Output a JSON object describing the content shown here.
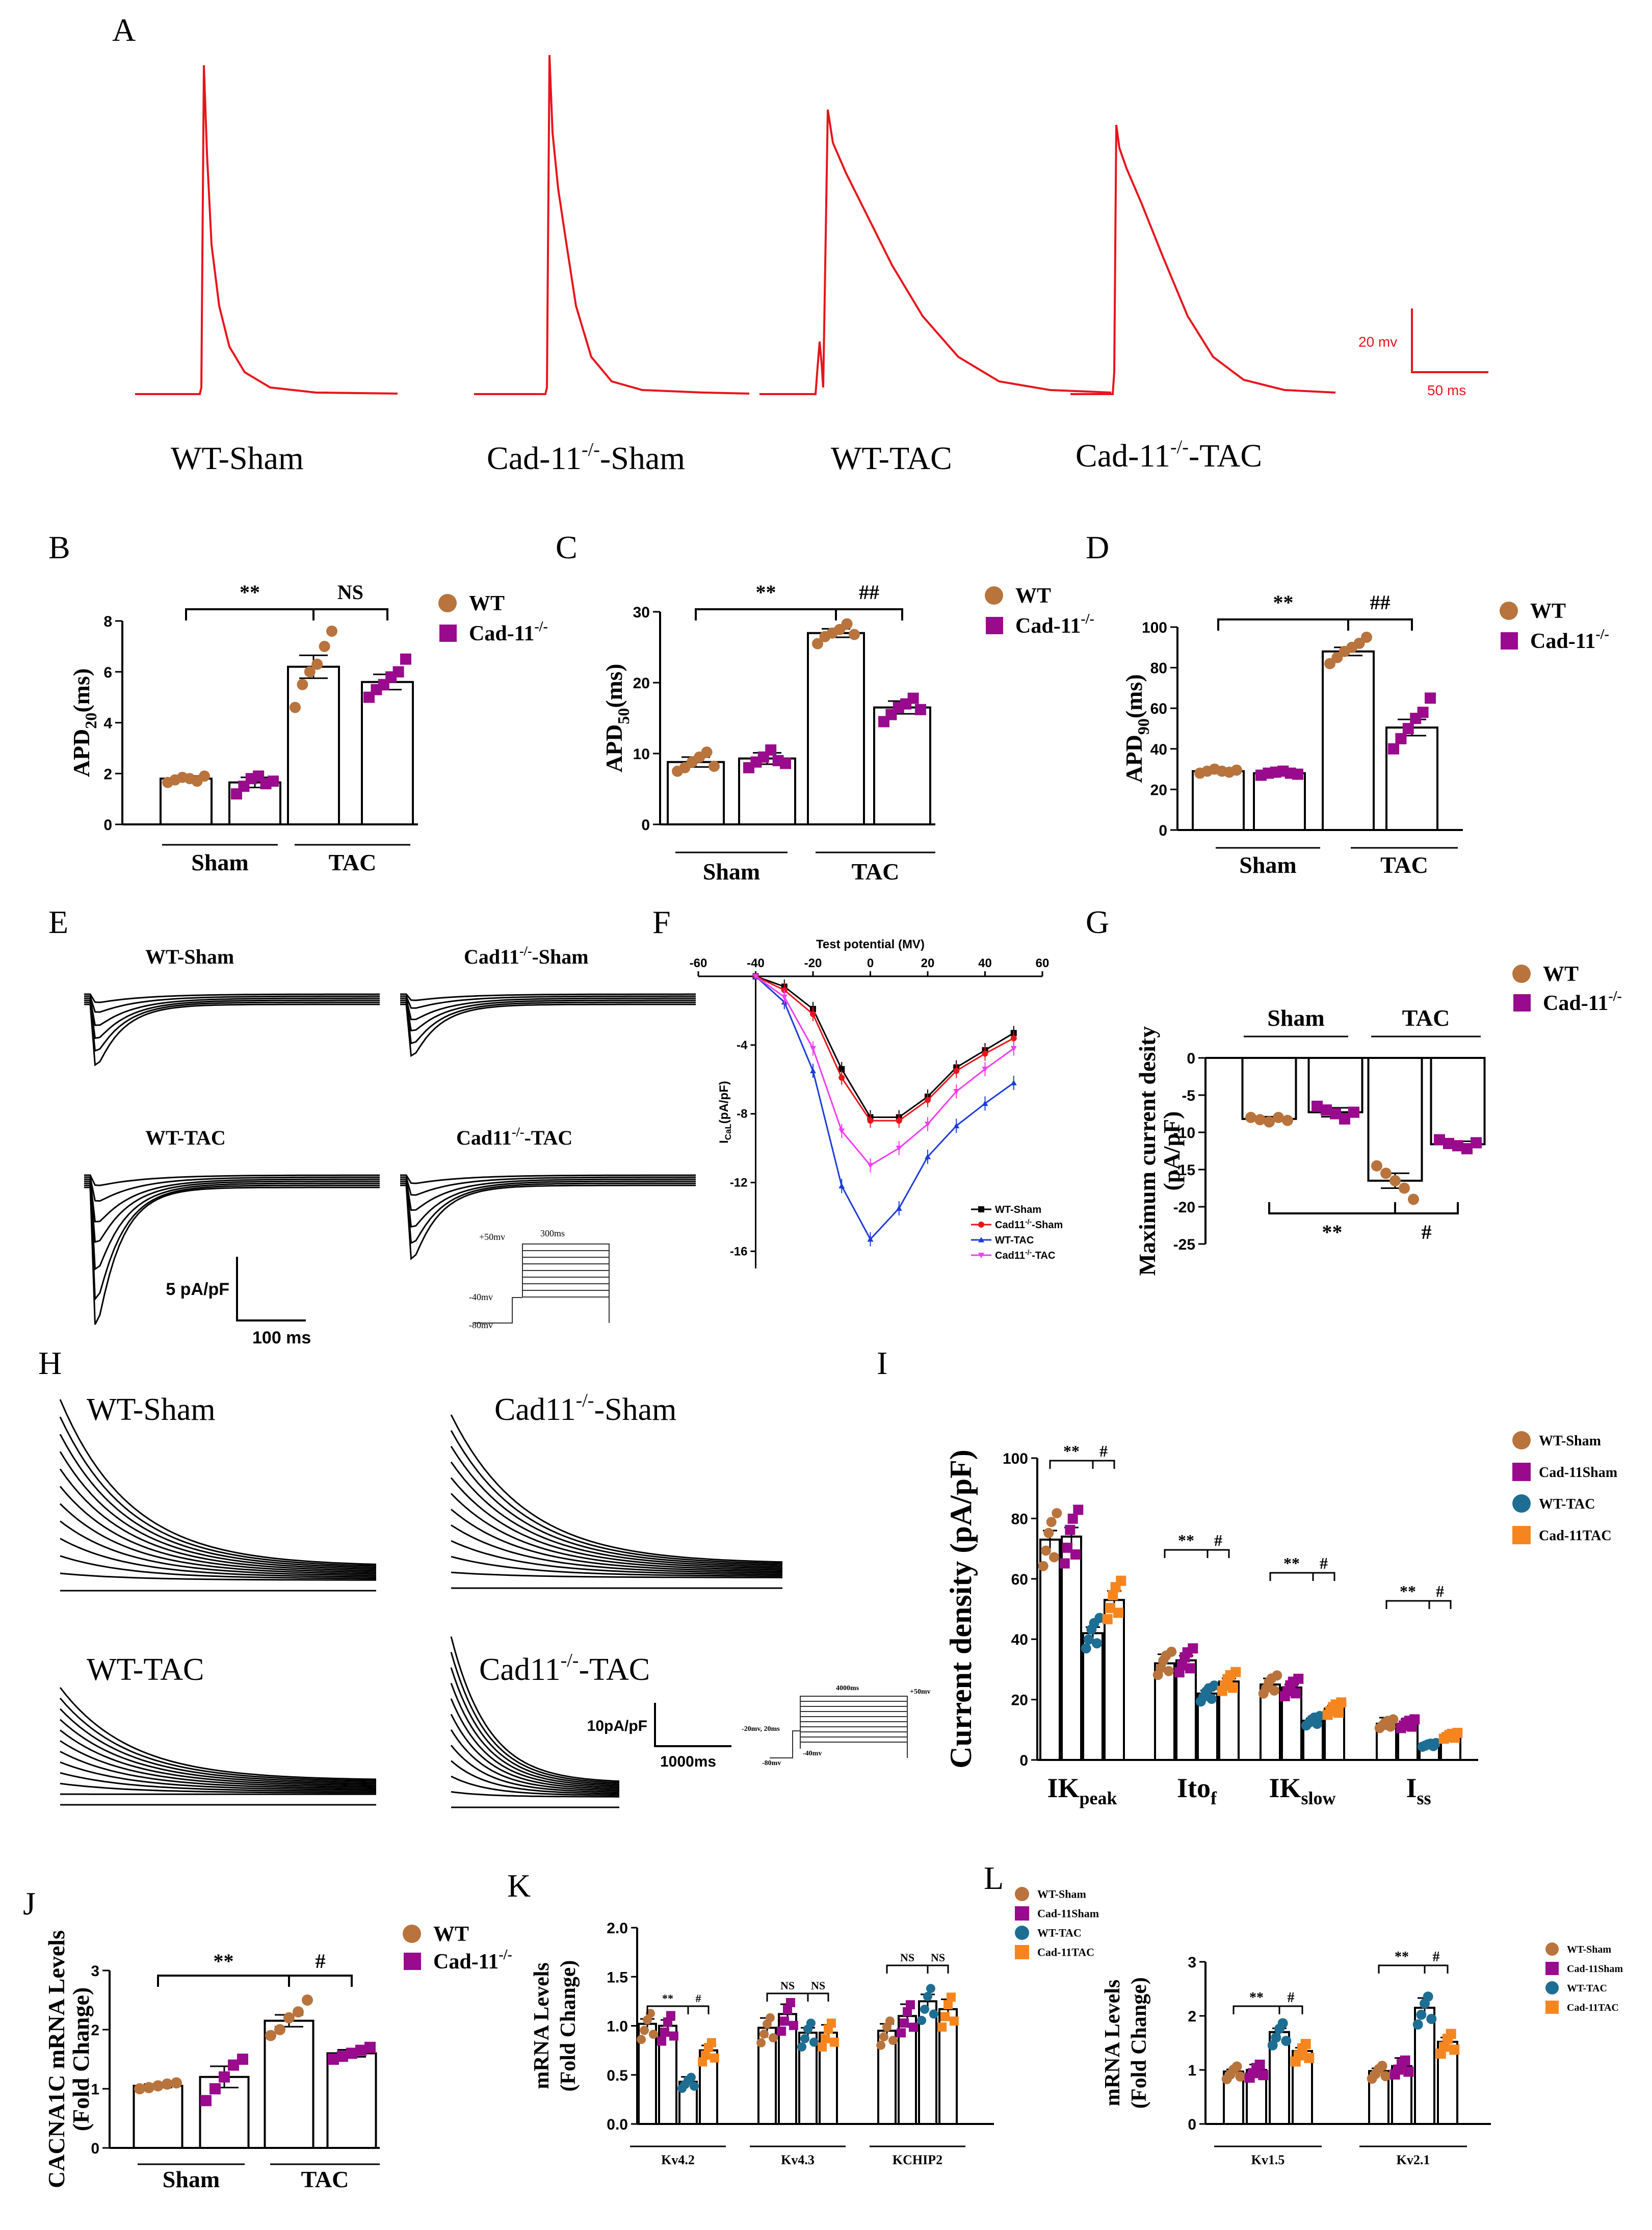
{
  "panel_letters": {
    "A": "A",
    "B": "B",
    "C": "C",
    "D": "D",
    "E": "E",
    "F": "F",
    "G": "G",
    "H": "H",
    "I": "I",
    "J": "J",
    "K": "K",
    "L": "L"
  },
  "panelA": {
    "labels": [
      "WT-Sham",
      "Cad-11",
      "-Sham",
      "WT-TAC",
      "Cad-11",
      "-TAC"
    ],
    "sup": "-/-",
    "scale_v": "20 mv",
    "scale_t": "50 ms",
    "trace_color": "#e8141c"
  },
  "legend_wt": "WT",
  "legend_cad": "Cad-11",
  "legend_sup": "-/-",
  "colors": {
    "wt": "#b8743c",
    "cad": "#990a8c",
    "wt_tac": "#1d6e92",
    "cad_tac": "#f5861f"
  },
  "panelE": {
    "labels": [
      "WT-Sham",
      "Cad11",
      "-Sham",
      "WT-TAC",
      "Cad11",
      "-TAC"
    ],
    "sup": "-/-",
    "scale_i": "5 pA/pF",
    "scale_t": "100 ms",
    "protocol": [
      "+50mv",
      "300ms",
      "-40mv",
      "-80mv"
    ]
  },
  "panelH": {
    "labels": [
      "WT-Sham",
      "Cad11",
      "-Sham",
      "WT-TAC",
      "Cad11",
      "-TAC"
    ],
    "sup": "-/-",
    "scale_i": "10pA/pF",
    "scale_t": "1000ms",
    "protocol": [
      "4000ms",
      "+50mv",
      "-20mv, 20ms",
      "-80mv",
      "-40mv"
    ]
  },
  "chart_data": [
    {
      "id": "B",
      "type": "bar",
      "title": "",
      "ylabel": "APD20(ms)",
      "ylabel_main": "APD",
      "ylabel_sub": "20",
      "ylabel_unit": "(ms)",
      "ylim": [
        0,
        8
      ],
      "yticks": [
        "0",
        "2",
        "4",
        "6",
        "8"
      ],
      "groups": [
        "Sham",
        "TAC"
      ],
      "series": [
        {
          "name": "WT"
        },
        {
          "name": "Cad-11-/-"
        }
      ],
      "values": [
        1.8,
        1.65,
        6.2,
        5.6
      ],
      "errors": [
        0.1,
        0.2,
        0.45,
        0.3
      ],
      "points": [
        [
          1.65,
          1.75,
          1.85,
          1.8,
          1.7,
          1.9
        ],
        [
          1.2,
          1.5,
          1.8,
          1.9,
          1.6,
          1.7
        ],
        [
          4.6,
          5.5,
          6.0,
          6.3,
          7.0,
          7.6
        ],
        [
          5.0,
          5.3,
          5.5,
          5.8,
          6.0,
          6.5
        ]
      ],
      "significance": [
        {
          "text": "**",
          "from": 0,
          "to": 2
        },
        {
          "text": "NS",
          "from": 2,
          "to": 3
        }
      ]
    },
    {
      "id": "C",
      "type": "bar",
      "title": "",
      "ylabel": "APD50(ms)",
      "ylabel_main": "APD",
      "ylabel_sub": "50",
      "ylabel_unit": "(ms)",
      "ylim": [
        0,
        30
      ],
      "yticks": [
        "0",
        "10",
        "20",
        "30"
      ],
      "groups": [
        "Sham",
        "TAC"
      ],
      "series": [
        {
          "name": "WT"
        },
        {
          "name": "Cad-11-/-"
        }
      ],
      "values": [
        8.8,
        9.3,
        27.0,
        16.5
      ],
      "errors": [
        0.7,
        0.8,
        0.6,
        0.9
      ],
      "points": [
        [
          7.5,
          8.0,
          8.8,
          9.5,
          10.2,
          8.2
        ],
        [
          8.0,
          8.8,
          9.5,
          10.5,
          9.0,
          8.6
        ],
        [
          25.5,
          26.5,
          27.0,
          27.5,
          28.3,
          26.8
        ],
        [
          14.5,
          15.5,
          16.5,
          17.0,
          17.8,
          16.2
        ]
      ],
      "significance": [
        {
          "text": "**",
          "from": 0,
          "to": 2
        },
        {
          "text": "##",
          "from": 2,
          "to": 3
        }
      ]
    },
    {
      "id": "D",
      "type": "bar",
      "title": "",
      "ylabel": "APD90(ms)",
      "ylabel_main": "APD",
      "ylabel_sub": "90",
      "ylabel_unit": "(ms)",
      "ylim": [
        0,
        100
      ],
      "yticks": [
        "0",
        "20",
        "40",
        "60",
        "80",
        "100"
      ],
      "groups": [
        "Sham",
        "TAC"
      ],
      "series": [
        {
          "name": "WT"
        },
        {
          "name": "Cad-11-/-"
        }
      ],
      "values": [
        29.0,
        28.0,
        88.0,
        50.5
      ],
      "errors": [
        0.8,
        0.8,
        2.0,
        4.0
      ],
      "points": [
        [
          28,
          29,
          30,
          29,
          28.5,
          29.5
        ],
        [
          27,
          28,
          28.5,
          29,
          28,
          27.5
        ],
        [
          82,
          85,
          88,
          90,
          92,
          95
        ],
        [
          40,
          45,
          50,
          55,
          58,
          65
        ]
      ],
      "significance": [
        {
          "text": "**",
          "from": 0,
          "to": 2
        },
        {
          "text": "##",
          "from": 2,
          "to": 3
        }
      ]
    },
    {
      "id": "F",
      "type": "line",
      "title": "Test potential (MV)",
      "xlabel": "Test potential (MV)",
      "ylabel": "ICaL(pA/pF)",
      "ylabel_main": "I",
      "ylabel_sub": "CaL",
      "ylabel_unit": "(pA/pF)",
      "xlim": [
        -60,
        60
      ],
      "ylim": [
        -17,
        0
      ],
      "xticks": [
        "-60",
        "-40",
        "-20",
        "0",
        "20",
        "40",
        "60"
      ],
      "yticks": [
        "-4",
        "-8",
        "-12",
        "-16"
      ],
      "x": [
        -40,
        -30,
        -20,
        -10,
        0,
        10,
        20,
        30,
        40,
        50
      ],
      "series": [
        {
          "name": "WT-Sham",
          "color": "#000000",
          "values": [
            0,
            -0.6,
            -1.9,
            -5.4,
            -8.2,
            -8.2,
            -7.0,
            -5.3,
            -4.3,
            -3.3
          ]
        },
        {
          "name": "Cad11-/--Sham",
          "label": "Cad11",
          "sup": "-/-",
          "tail": "-Sham",
          "color": "#e8141c",
          "values": [
            0,
            -0.8,
            -2.2,
            -5.9,
            -8.4,
            -8.4,
            -7.2,
            -5.5,
            -4.5,
            -3.6
          ]
        },
        {
          "name": "WT-TAC",
          "color": "#1c3bdc",
          "values": [
            0,
            -1.5,
            -5.5,
            -12.2,
            -15.3,
            -13.5,
            -10.5,
            -8.7,
            -7.4,
            -6.2
          ]
        },
        {
          "name": "Cad11-/--TAC",
          "label": "Cad11",
          "sup": "-/-",
          "tail": "-TAC",
          "color": "#f23cf2",
          "values": [
            0,
            -1.2,
            -4.2,
            -9.0,
            -11.0,
            -10.0,
            -8.6,
            -6.7,
            -5.4,
            -4.2
          ]
        }
      ]
    },
    {
      "id": "G",
      "type": "bar",
      "title": "",
      "ylabel": "Maximum current desity (pA/pF)",
      "ylabel_line1": "Maximum current desity",
      "ylabel_line2": "(pA/pF)",
      "ylim": [
        -25,
        0
      ],
      "yticks": [
        "0",
        "-5",
        "-10",
        "-15",
        "-20",
        "-25"
      ],
      "groups": [
        "Sham",
        "TAC"
      ],
      "series": [
        {
          "name": "WT"
        },
        {
          "name": "Cad-11-/-"
        }
      ],
      "values": [
        -8.2,
        -7.3,
        -16.5,
        -11.6
      ],
      "errors": [
        0.3,
        0.6,
        1.0,
        0.4
      ],
      "points": [
        [
          -8.0,
          -8.3,
          -8.6,
          -8.0,
          -8.4
        ],
        [
          -6.5,
          -7.0,
          -7.5,
          -8.2,
          -7.3
        ],
        [
          -14.5,
          -15.5,
          -16.5,
          -17.5,
          -19.0
        ],
        [
          -11.0,
          -11.5,
          -11.8,
          -12.2,
          -11.4
        ]
      ],
      "significance": [
        {
          "text": "**",
          "from": 0,
          "to": 2
        },
        {
          "text": "#",
          "from": 2,
          "to": 3
        }
      ]
    },
    {
      "id": "I",
      "type": "bar",
      "title": "",
      "ylabel": "Current density (pA/pF)",
      "ylim": [
        0,
        100
      ],
      "yticks": [
        "0",
        "20",
        "40",
        "60",
        "80",
        "100"
      ],
      "categories": [
        "IKpeak",
        "Itof",
        "IKslow",
        "Iss"
      ],
      "category_main": [
        "IK",
        "Ito",
        "IK",
        "I"
      ],
      "category_sub": [
        "peak",
        "f",
        "slow",
        "ss"
      ],
      "series": [
        {
          "name": "WT-Sham",
          "values": [
            73,
            32,
            25,
            12
          ]
        },
        {
          "name": "Cad-11Sham",
          "values": [
            74,
            33,
            24,
            12
          ]
        },
        {
          "name": "WT-TAC",
          "values": [
            42,
            22,
            13,
            5
          ]
        },
        {
          "name": "Cad-11TAC",
          "values": [
            53,
            26,
            17,
            8
          ]
        }
      ],
      "errors": [
        [
          3,
          3,
          2,
          2
        ],
        [
          3,
          1.5,
          1,
          1.5
        ],
        [
          2,
          1,
          0.8,
          0.7
        ],
        [
          3,
          1,
          1,
          1
        ]
      ],
      "significance": [
        {
          "text": "**",
          "pair": [
            0,
            2
          ]
        },
        {
          "text": "#",
          "pair": [
            2,
            3
          ]
        }
      ]
    },
    {
      "id": "J",
      "type": "bar",
      "title": "",
      "ylabel": "CACNA1C mRNA Levels (Fold Change)",
      "ylabel_line1": "CACNA1C mRNA Levels",
      "ylabel_line2": "(Fold Change)",
      "ylim": [
        0,
        3
      ],
      "yticks": [
        "0",
        "1",
        "2",
        "3"
      ],
      "groups": [
        "Sham",
        "TAC"
      ],
      "series": [
        {
          "name": "WT"
        },
        {
          "name": "Cad-11-/-"
        }
      ],
      "values": [
        1.05,
        1.2,
        2.15,
        1.6
      ],
      "errors": [
        0.03,
        0.18,
        0.1,
        0.06
      ],
      "points": [
        [
          1.0,
          1.02,
          1.05,
          1.08,
          1.1
        ],
        [
          0.8,
          1.0,
          1.2,
          1.4,
          1.5
        ],
        [
          1.9,
          2.0,
          2.2,
          2.3,
          2.5
        ],
        [
          1.5,
          1.55,
          1.6,
          1.65,
          1.7
        ]
      ],
      "significance": [
        {
          "text": "**",
          "from": 0,
          "to": 2
        },
        {
          "text": "#",
          "from": 2,
          "to": 3
        }
      ]
    },
    {
      "id": "K",
      "type": "bar",
      "title": "",
      "ylabel": "mRNA Levels (Fold Change)",
      "ylabel_line1": "mRNA Levels",
      "ylabel_line2": "(Fold Change)",
      "ylim": [
        0,
        2.0
      ],
      "yticks": [
        "0.0",
        "0.5",
        "1.0",
        "1.5",
        "2.0"
      ],
      "categories": [
        "Kv4.2",
        "Kv4.3",
        "KCHIP2"
      ],
      "series": [
        {
          "name": "WT-Sham",
          "values": [
            1.02,
            0.98,
            0.95
          ]
        },
        {
          "name": "Cad-11Sham",
          "values": [
            1.0,
            1.12,
            1.1
          ]
        },
        {
          "name": "WT-TAC",
          "values": [
            0.43,
            0.93,
            1.25
          ]
        },
        {
          "name": "Cad-11TAC",
          "values": [
            0.75,
            0.93,
            1.17
          ]
        }
      ],
      "errors": [
        [
          0.05,
          0.1,
          0.07
        ],
        [
          0.06,
          0.1,
          0.12
        ],
        [
          0.05,
          0.05,
          0.07
        ],
        [
          0.05,
          0.08,
          0.1
        ]
      ],
      "significance": [
        [
          "**",
          "#"
        ],
        [
          "NS",
          "NS"
        ],
        [
          "NS",
          "NS"
        ]
      ]
    },
    {
      "id": "L",
      "type": "bar",
      "title": "",
      "ylabel": "mRNA Levels (Fold Change)",
      "ylabel_line1": "mRNA Levels",
      "ylabel_line2": "(Fold Change)",
      "ylim": [
        0,
        3
      ],
      "yticks": [
        "0",
        "1",
        "2",
        "3"
      ],
      "categories": [
        "Kv1.5",
        "Kv2.1"
      ],
      "series": [
        {
          "name": "WT-Sham",
          "values": [
            0.97,
            0.98
          ]
        },
        {
          "name": "Cad-11Sham",
          "values": [
            1.0,
            1.07
          ]
        },
        {
          "name": "WT-TAC",
          "values": [
            1.7,
            2.15
          ]
        },
        {
          "name": "Cad-11TAC",
          "values": [
            1.35,
            1.52
          ]
        }
      ],
      "errors": [
        [
          0.04,
          0.05
        ],
        [
          0.1,
          0.15
        ],
        [
          0.07,
          0.18
        ],
        [
          0.06,
          0.08
        ]
      ],
      "significance": [
        [
          "**",
          "#"
        ],
        [
          "**",
          "#"
        ]
      ]
    }
  ]
}
